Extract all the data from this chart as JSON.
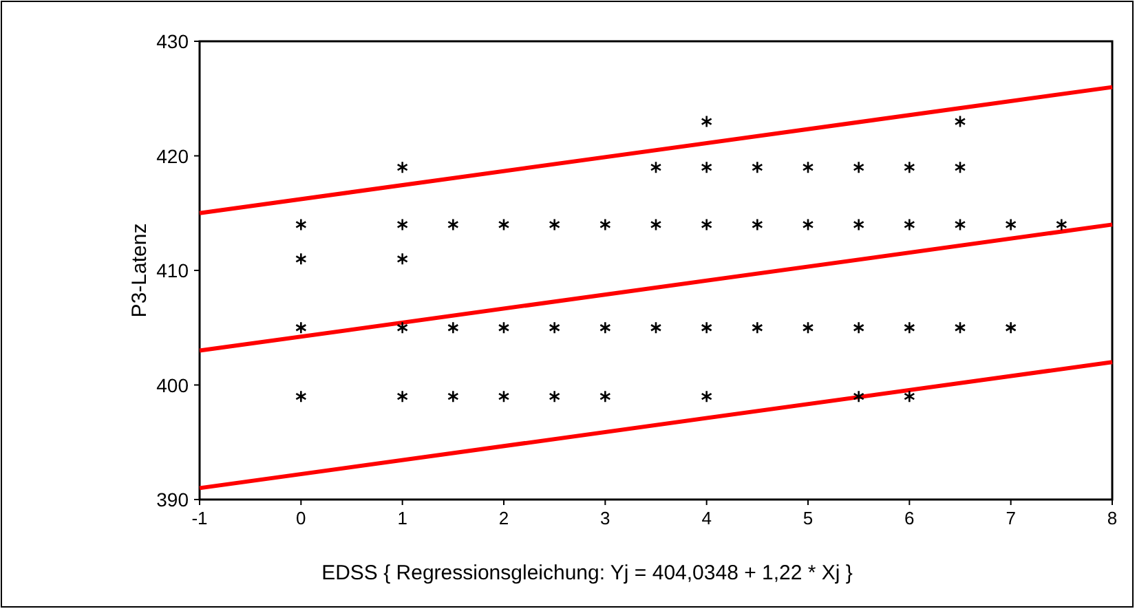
{
  "chart_data": {
    "type": "scatter",
    "xlabel": "EDSS { Regressionsgleichung: Yj = 404,0348 + 1,22 * Xj }",
    "ylabel": "P3-Latenz",
    "xlim": [
      -1,
      8
    ],
    "xticks": [
      -1,
      0,
      1,
      2,
      3,
      4,
      5,
      6,
      7,
      8
    ],
    "ylim": [
      390,
      430
    ],
    "yticks": [
      390,
      400,
      410,
      420,
      430
    ],
    "grid": false,
    "series": [
      {
        "marker": "cross",
        "color": "#000000",
        "x": [
          0,
          0,
          0,
          0,
          1,
          1,
          1,
          1,
          1,
          1.5,
          1.5,
          1.5,
          2,
          2,
          2,
          2.5,
          2.5,
          2.5,
          3,
          3,
          3,
          3.5,
          3.5,
          3.5,
          4,
          4,
          4,
          4,
          4,
          4.5,
          4.5,
          4.5,
          5,
          5,
          5,
          5.5,
          5.5,
          5.5,
          5.5,
          6,
          6,
          6,
          6,
          6.5,
          6.5,
          6.5,
          6.5,
          7,
          7,
          7.5
        ],
        "values": [
          414,
          411,
          405,
          399,
          419,
          414,
          411,
          405,
          399,
          414,
          405,
          399,
          414,
          405,
          399,
          414,
          405,
          399,
          414,
          405,
          399,
          419,
          414,
          405,
          423,
          419,
          414,
          405,
          399,
          419,
          414,
          405,
          419,
          414,
          405,
          419,
          414,
          405,
          399,
          419,
          414,
          405,
          399,
          423,
          419,
          414,
          405,
          414,
          405,
          414
        ]
      },
      {
        "type": "line",
        "color": "#ff0000",
        "x": [
          -1,
          8
        ],
        "values": [
          415,
          426
        ]
      },
      {
        "type": "line",
        "color": "#ff0000",
        "x": [
          -1,
          8
        ],
        "values": [
          403,
          414
        ]
      },
      {
        "type": "line",
        "color": "#ff0000",
        "x": [
          -1,
          8
        ],
        "values": [
          391,
          402
        ]
      }
    ]
  }
}
